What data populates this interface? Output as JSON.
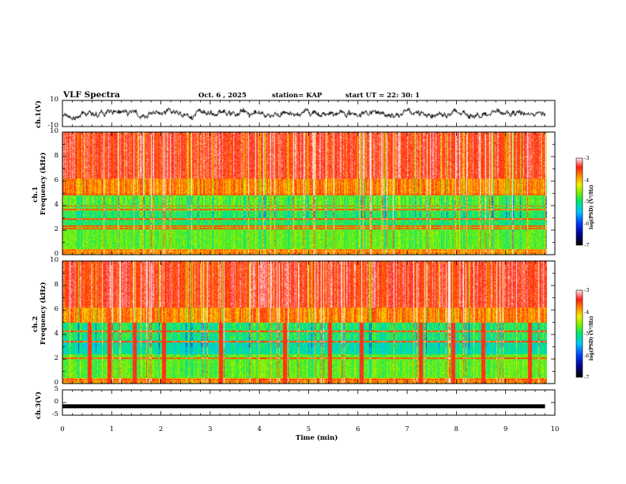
{
  "header": {
    "title": "VLF Spectra",
    "date": "Oct. 6 , 2025",
    "station": "station= KAP",
    "start_time": "start  UT  =   22: 30: 1"
  },
  "chart_data": [
    {
      "type": "line",
      "name": "ch1-voltage",
      "ylabel": "ch.1(V)",
      "ylim": [
        -10,
        10
      ],
      "yticks": [
        "10",
        "-10"
      ],
      "x_range_min": [
        0,
        9.8
      ],
      "description_levels": "noisy waveform fluctuating around roughly -2 to 2 V"
    },
    {
      "type": "heatmap",
      "name": "ch1-spectrogram",
      "ylabel": "ch.1\nFrequency  (kHz)",
      "ylim": [
        0,
        10
      ],
      "yticks": [
        "0",
        "2",
        "4",
        "6",
        "8",
        "10"
      ],
      "colorbar": {
        "label": "log(PSD) (V²/Hz)",
        "ticks": [
          "-3",
          "-4",
          "-5",
          "-6",
          "-7"
        ],
        "range": [
          -7,
          -3
        ]
      }
    },
    {
      "type": "heatmap",
      "name": "ch2-spectrogram",
      "ylabel": "ch.2\nFrequency  (kHz)",
      "ylim": [
        0,
        10
      ],
      "yticks": [
        "0",
        "2",
        "4",
        "6",
        "8",
        "10"
      ],
      "colorbar": {
        "label": "log(PSD) (V²/Hz)",
        "ticks": [
          "-3",
          "-4",
          "-5",
          "-6",
          "-7"
        ],
        "range": [
          -7,
          -3
        ]
      }
    },
    {
      "type": "line",
      "name": "ch3-voltage",
      "ylabel": "ch.3(V)",
      "ylim": [
        -5,
        5
      ],
      "yticks": [
        "5",
        "0",
        "-5"
      ],
      "level": -1.5
    }
  ],
  "xaxis": {
    "label": "Time  (min)",
    "ticks": [
      "0",
      "1",
      "2",
      "3",
      "4",
      "5",
      "6",
      "7",
      "8",
      "9",
      "10"
    ],
    "range": [
      0,
      10
    ]
  }
}
